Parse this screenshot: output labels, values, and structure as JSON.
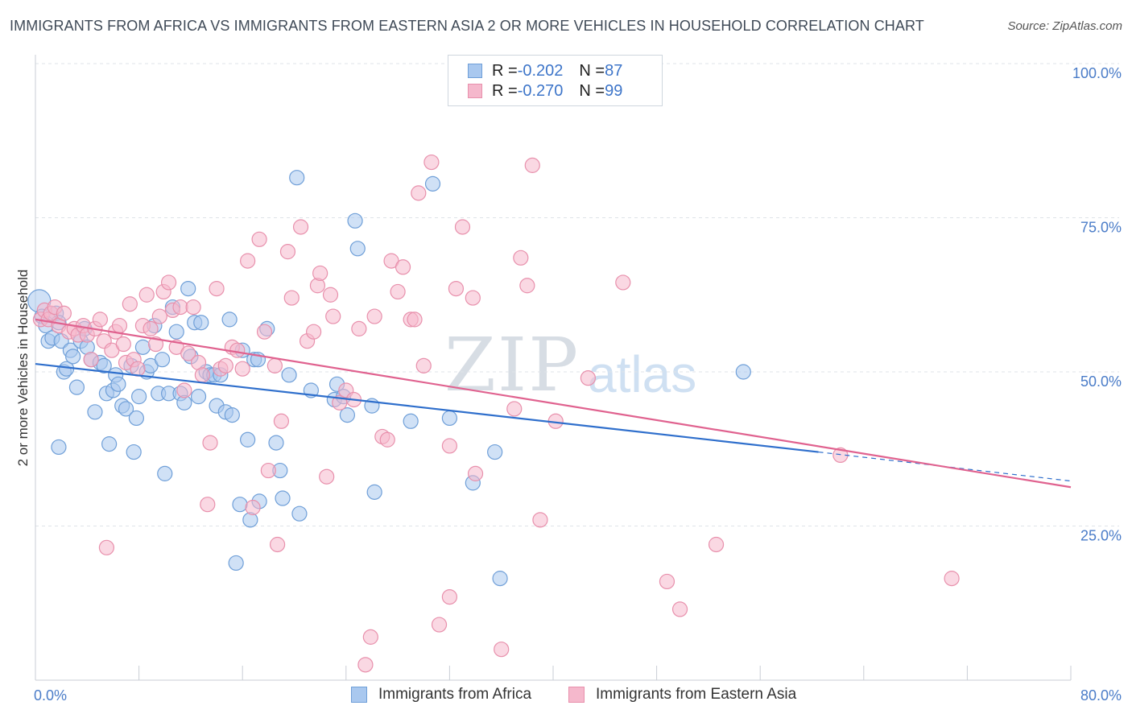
{
  "title": "IMMIGRANTS FROM AFRICA VS IMMIGRANTS FROM EASTERN ASIA 2 OR MORE VEHICLES IN HOUSEHOLD CORRELATION CHART",
  "source": "Source: ZipAtlas.com",
  "watermark": {
    "zip": "ZIP",
    "atlas": "atlas"
  },
  "legend": {
    "africa": {
      "r_label": "R = ",
      "r_value": "-0.202",
      "n_label": "N = ",
      "n_value": "87"
    },
    "asia": {
      "r_label": "R = ",
      "r_value": "-0.270",
      "n_label": "N = ",
      "n_value": "99"
    }
  },
  "bottom_legend": {
    "africa": "Immigrants from Africa",
    "asia": "Immigrants from Eastern Asia"
  },
  "colors": {
    "africa_fill": "#a9c8ef",
    "africa_stroke": "#6f9fd8",
    "africa_line": "#2f6fcc",
    "asia_fill": "#f5b8cc",
    "asia_stroke": "#e890ac",
    "asia_line": "#e0628f",
    "grid": "#dfe3e8",
    "tick_text": "#4a7cc8"
  },
  "chart_data": {
    "type": "scatter",
    "title": "IMMIGRANTS FROM AFRICA VS IMMIGRANTS FROM EASTERN ASIA 2 OR MORE VEHICLES IN HOUSEHOLD CORRELATION CHART",
    "xlabel": "",
    "ylabel": "2 or more Vehicles in Household",
    "xlim": [
      0,
      80
    ],
    "ylim": [
      0,
      100
    ],
    "x_tick_labels": [
      "0.0%",
      "80.0%"
    ],
    "y_ticks": [
      25,
      50,
      75,
      100
    ],
    "y_tick_labels": [
      "25.0%",
      "50.0%",
      "75.0%",
      "100.0%"
    ],
    "grid": true,
    "legend_position": "top-center",
    "series": [
      {
        "name": "Immigrants from Africa",
        "R": -0.202,
        "N": 87,
        "trend": {
          "x": [
            0,
            60.5
          ],
          "y": [
            51.3,
            37.0
          ],
          "dashed_to": [
            80,
            32.3
          ]
        },
        "points": [
          [
            0.3,
            61.5,
            14
          ],
          [
            0.5,
            59.0,
            9
          ],
          [
            0.8,
            57.5,
            9
          ],
          [
            1.0,
            55.0,
            9
          ],
          [
            1.3,
            55.5,
            9
          ],
          [
            1.6,
            59.5,
            9
          ],
          [
            1.8,
            58.0,
            9
          ],
          [
            2.0,
            55.0,
            9
          ],
          [
            1.8,
            37.8,
            9
          ],
          [
            2.2,
            50.0,
            9
          ],
          [
            2.4,
            50.5,
            9
          ],
          [
            2.7,
            53.5,
            9
          ],
          [
            2.9,
            52.5,
            9
          ],
          [
            3.2,
            47.5,
            9
          ],
          [
            3.5,
            55.0,
            9
          ],
          [
            3.8,
            57.0,
            9
          ],
          [
            4.0,
            54.0,
            9
          ],
          [
            4.3,
            52.0,
            9
          ],
          [
            4.6,
            43.5,
            9
          ],
          [
            5.0,
            51.5,
            9
          ],
          [
            5.3,
            51.0,
            9
          ],
          [
            5.5,
            46.5,
            9
          ],
          [
            5.7,
            38.3,
            9
          ],
          [
            6.0,
            47.0,
            9
          ],
          [
            6.2,
            49.5,
            9
          ],
          [
            6.4,
            48.0,
            9
          ],
          [
            6.7,
            44.5,
            9
          ],
          [
            7.0,
            44.0,
            9
          ],
          [
            7.4,
            51.0,
            9
          ],
          [
            7.6,
            37.0,
            9
          ],
          [
            7.8,
            42.5,
            9
          ],
          [
            8.0,
            46.0,
            9
          ],
          [
            8.3,
            54.0,
            9
          ],
          [
            8.6,
            50.0,
            9
          ],
          [
            8.9,
            51.0,
            9
          ],
          [
            9.2,
            57.5,
            9
          ],
          [
            9.5,
            46.5,
            9
          ],
          [
            9.8,
            52.0,
            9
          ],
          [
            10.0,
            33.5,
            9
          ],
          [
            10.3,
            46.5,
            9
          ],
          [
            10.6,
            60.5,
            9
          ],
          [
            10.9,
            56.5,
            9
          ],
          [
            11.2,
            46.5,
            9
          ],
          [
            11.5,
            45.0,
            9
          ],
          [
            11.8,
            63.5,
            9
          ],
          [
            12.0,
            52.5,
            9
          ],
          [
            12.3,
            58.0,
            9
          ],
          [
            12.6,
            46.0,
            9
          ],
          [
            12.8,
            58.0,
            9
          ],
          [
            13.2,
            50.0,
            9
          ],
          [
            13.5,
            49.5,
            9
          ],
          [
            13.8,
            49.5,
            9
          ],
          [
            14.0,
            44.5,
            9
          ],
          [
            14.3,
            49.5,
            9
          ],
          [
            14.7,
            43.5,
            9
          ],
          [
            15.0,
            58.5,
            9
          ],
          [
            15.2,
            43.0,
            9
          ],
          [
            15.5,
            19.0,
            9
          ],
          [
            15.8,
            28.5,
            9
          ],
          [
            16.0,
            53.5,
            9
          ],
          [
            16.4,
            39.0,
            9
          ],
          [
            16.6,
            26.0,
            9
          ],
          [
            16.9,
            52.0,
            9
          ],
          [
            17.2,
            52.0,
            9
          ],
          [
            17.3,
            29.0,
            9
          ],
          [
            17.9,
            57.0,
            9
          ],
          [
            18.6,
            38.5,
            9
          ],
          [
            18.9,
            34.0,
            9
          ],
          [
            19.1,
            29.5,
            9
          ],
          [
            19.6,
            49.5,
            9
          ],
          [
            20.2,
            81.5,
            9
          ],
          [
            20.4,
            27.0,
            9
          ],
          [
            21.3,
            47.0,
            9
          ],
          [
            23.1,
            45.5,
            9
          ],
          [
            23.3,
            48.0,
            9
          ],
          [
            23.8,
            46.0,
            9
          ],
          [
            24.1,
            43.0,
            9
          ],
          [
            24.7,
            74.5,
            9
          ],
          [
            24.9,
            70.0,
            9
          ],
          [
            26.0,
            44.5,
            9
          ],
          [
            26.2,
            30.5,
            9
          ],
          [
            29.0,
            42.0,
            9
          ],
          [
            30.7,
            80.5,
            9
          ],
          [
            32.0,
            42.5,
            9
          ],
          [
            33.8,
            32.0,
            9
          ],
          [
            35.5,
            37.0,
            9
          ],
          [
            35.9,
            16.5,
            9
          ],
          [
            54.7,
            50.0,
            9
          ]
        ]
      },
      {
        "name": "Immigrants from Eastern Asia",
        "R": -0.27,
        "N": 99,
        "trend": {
          "x": [
            0,
            80
          ],
          "y": [
            58.5,
            31.3
          ]
        },
        "points": [
          [
            0.4,
            58.5,
            9
          ],
          [
            0.7,
            60.0,
            9
          ],
          [
            1.0,
            58.5,
            9
          ],
          [
            1.2,
            59.5,
            9
          ],
          [
            1.5,
            60.5,
            9
          ],
          [
            1.8,
            57.5,
            9
          ],
          [
            2.2,
            59.5,
            9
          ],
          [
            2.6,
            56.5,
            9
          ],
          [
            3.0,
            57.0,
            9
          ],
          [
            3.3,
            56.0,
            9
          ],
          [
            3.7,
            57.5,
            9
          ],
          [
            4.0,
            56.0,
            9
          ],
          [
            4.3,
            52.0,
            9
          ],
          [
            4.6,
            57.0,
            9
          ],
          [
            5.0,
            58.5,
            9
          ],
          [
            5.3,
            55.0,
            9
          ],
          [
            5.5,
            21.5,
            9
          ],
          [
            5.9,
            53.5,
            9
          ],
          [
            6.2,
            56.5,
            9
          ],
          [
            6.5,
            57.5,
            9
          ],
          [
            6.8,
            54.5,
            9
          ],
          [
            7.0,
            51.5,
            9
          ],
          [
            7.3,
            61.0,
            9
          ],
          [
            7.6,
            52.0,
            9
          ],
          [
            7.9,
            50.5,
            9
          ],
          [
            8.3,
            57.5,
            9
          ],
          [
            8.6,
            62.5,
            9
          ],
          [
            8.9,
            57.0,
            9
          ],
          [
            9.3,
            54.5,
            9
          ],
          [
            9.6,
            59.0,
            9
          ],
          [
            9.9,
            63.0,
            9
          ],
          [
            10.3,
            64.5,
            9
          ],
          [
            10.6,
            60.0,
            9
          ],
          [
            10.9,
            54.0,
            9
          ],
          [
            11.2,
            60.5,
            9
          ],
          [
            11.5,
            47.0,
            9
          ],
          [
            11.8,
            53.0,
            9
          ],
          [
            12.2,
            60.5,
            9
          ],
          [
            12.6,
            51.5,
            9
          ],
          [
            12.9,
            49.5,
            9
          ],
          [
            13.3,
            28.5,
            9
          ],
          [
            13.5,
            38.5,
            9
          ],
          [
            14.0,
            63.5,
            9
          ],
          [
            14.3,
            50.5,
            9
          ],
          [
            14.7,
            51.0,
            9
          ],
          [
            15.2,
            54.0,
            9
          ],
          [
            15.6,
            53.5,
            9
          ],
          [
            16.0,
            50.5,
            9
          ],
          [
            16.4,
            68.0,
            9
          ],
          [
            16.8,
            28.0,
            9
          ],
          [
            17.3,
            71.5,
            9
          ],
          [
            17.7,
            56.5,
            9
          ],
          [
            18.0,
            34.0,
            9
          ],
          [
            18.5,
            51.0,
            9
          ],
          [
            18.7,
            22.0,
            9
          ],
          [
            19.0,
            42.0,
            9
          ],
          [
            19.5,
            69.5,
            9
          ],
          [
            19.8,
            62.0,
            9
          ],
          [
            20.5,
            73.5,
            9
          ],
          [
            21.0,
            55.0,
            9
          ],
          [
            21.5,
            56.5,
            9
          ],
          [
            21.8,
            64.0,
            9
          ],
          [
            22.0,
            66.0,
            9
          ],
          [
            22.5,
            33.0,
            9
          ],
          [
            22.8,
            62.5,
            9
          ],
          [
            23.0,
            59.0,
            9
          ],
          [
            23.5,
            45.0,
            9
          ],
          [
            24.0,
            47.0,
            9
          ],
          [
            24.6,
            45.5,
            9
          ],
          [
            25.0,
            57.0,
            9
          ],
          [
            25.5,
            2.5,
            9
          ],
          [
            25.9,
            7.0,
            9
          ],
          [
            26.2,
            59.0,
            9
          ],
          [
            26.8,
            39.5,
            9
          ],
          [
            27.2,
            39.0,
            9
          ],
          [
            27.5,
            68.0,
            9
          ],
          [
            28.0,
            63.0,
            9
          ],
          [
            28.4,
            67.0,
            9
          ],
          [
            29.0,
            58.5,
            9
          ],
          [
            29.3,
            58.5,
            9
          ],
          [
            29.6,
            79.0,
            9
          ],
          [
            30.0,
            51.0,
            9
          ],
          [
            30.6,
            84.0,
            9
          ],
          [
            31.2,
            9.0,
            9
          ],
          [
            32.0,
            38.0,
            9
          ],
          [
            32.0,
            13.5,
            9
          ],
          [
            32.5,
            63.5,
            9
          ],
          [
            33.0,
            73.5,
            9
          ],
          [
            33.8,
            62.0,
            9
          ],
          [
            34.0,
            33.5,
            9
          ],
          [
            36.0,
            5.0,
            9
          ],
          [
            37.0,
            44.0,
            9
          ],
          [
            37.5,
            68.5,
            9
          ],
          [
            38.0,
            64.0,
            9
          ],
          [
            38.4,
            83.5,
            9
          ],
          [
            39.0,
            26.0,
            9
          ],
          [
            40.2,
            42.0,
            9
          ],
          [
            42.7,
            49.0,
            9
          ],
          [
            45.4,
            64.5,
            9
          ],
          [
            48.8,
            16.0,
            9
          ],
          [
            49.8,
            11.5,
            9
          ],
          [
            52.6,
            22.0,
            9
          ],
          [
            62.2,
            36.5,
            9
          ],
          [
            70.8,
            16.5,
            9
          ],
          [
            43.5,
            100.0,
            9
          ]
        ]
      }
    ]
  }
}
